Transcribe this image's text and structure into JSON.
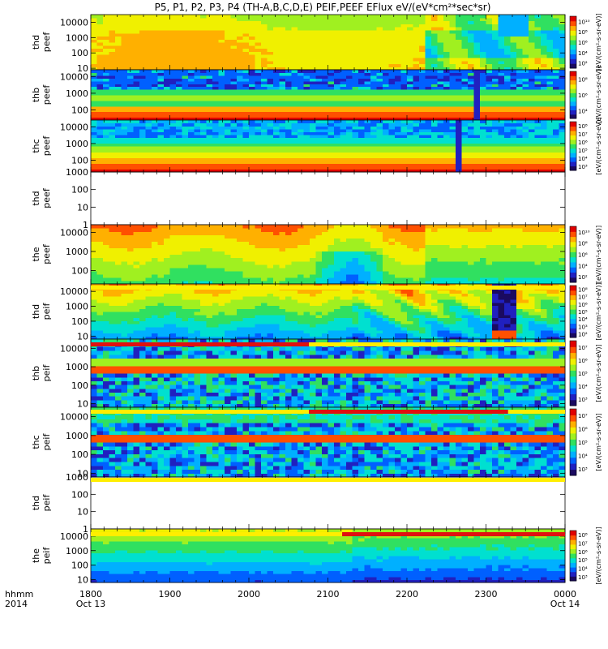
{
  "title": "P5, P1, P2, P3, P4 (TH-A,B,C,D,E) PEIF,PEEF EFlux eV/(eV*cm²*sec*sr)",
  "colors": {
    "red_bar": "#e01010",
    "yellow_bar": "#ffee00",
    "background": "#ffffff",
    "axis": "#000000"
  },
  "colormap": [
    "#1a0a60",
    "#2020c0",
    "#0060ff",
    "#00b0ff",
    "#00e0d0",
    "#30e060",
    "#a0f020",
    "#f0f000",
    "#ffb000",
    "#ff5000",
    "#e00000"
  ],
  "chart_data": {
    "type": "heatmap",
    "x_axis": {
      "row1_label": "hhmm",
      "row2_label": "2014",
      "ticks": [
        {
          "hhmm": "1800",
          "date": "Oct 13"
        },
        {
          "hhmm": "1900",
          "date": ""
        },
        {
          "hhmm": "2000",
          "date": ""
        },
        {
          "hhmm": "2100",
          "date": ""
        },
        {
          "hhmm": "2200",
          "date": ""
        },
        {
          "hhmm": "2300",
          "date": ""
        },
        {
          "hhmm": "0000",
          "date": "Oct 14"
        }
      ],
      "minor_per_major": 6
    },
    "panels": [
      {
        "ylabel1": "thd",
        "ylabel2": "peef",
        "yscale": "log",
        "yticks": [
          "10",
          "100",
          "1000",
          "10000"
        ],
        "ylim_log": [
          0.9,
          4.5
        ],
        "has_data": true,
        "pattern": "thd_peef",
        "cbar_labels": [
          "10²",
          "10⁴",
          "10⁶",
          "10⁸",
          "10¹⁰"
        ],
        "cbar_title": "[eV/(cm²-s-sr-eV)]"
      },
      {
        "ylabel1": "thb",
        "ylabel2": "peef",
        "yscale": "log",
        "yticks": [
          "100",
          "1000",
          "10000"
        ],
        "ylim_log": [
          1.4,
          4.4
        ],
        "has_data": true,
        "pattern": "thb_peef",
        "cbar_labels": [
          "10⁴",
          "10⁶",
          "10⁸"
        ],
        "cbar_title": "[eV/(cm²-s-sr-eV)]"
      },
      {
        "ylabel1": "thc",
        "ylabel2": "peef",
        "yscale": "log",
        "yticks": [
          "100",
          "1000",
          "10000"
        ],
        "ylim_log": [
          1.3,
          4.4
        ],
        "has_data": true,
        "pattern": "thc_peef",
        "cbar_labels": [
          "10³",
          "10⁴",
          "10⁵",
          "10⁶",
          "10⁷",
          "10⁸"
        ],
        "cbar_title": "[eV/(cm²-s-sr-eV)]"
      },
      {
        "ylabel1": "thd",
        "ylabel2": "peef",
        "yscale": "log",
        "yticks": [
          "1",
          "10",
          "100",
          "1000"
        ],
        "ylim_log": [
          0,
          3
        ],
        "has_data": false,
        "pattern": "",
        "cbar_labels": [],
        "cbar_title": ""
      },
      {
        "ylabel1": "the",
        "ylabel2": "peef",
        "yscale": "log",
        "yticks": [
          "100",
          "1000",
          "10000"
        ],
        "ylim_log": [
          1.3,
          4.4
        ],
        "has_data": true,
        "pattern": "the_peef",
        "cbar_labels": [
          "10²",
          "10⁴",
          "10⁶",
          "10⁸",
          "10¹⁰"
        ],
        "cbar_title": "[eV/(cm²-s-sr-eV)]"
      },
      {
        "ylabel1": "thd",
        "ylabel2": "peif",
        "yscale": "log",
        "yticks": [
          "10",
          "100",
          "1000",
          "10000"
        ],
        "ylim_log": [
          0.8,
          4.5
        ],
        "has_data": true,
        "pattern": "thd_peif",
        "cbar_labels": [
          "10²",
          "10³",
          "10⁴",
          "10⁵",
          "10⁶",
          "10⁷",
          "10⁸"
        ],
        "cbar_title": "[eV/(cm²-s-sr-eV)]"
      },
      {
        "ylabel1": "thb",
        "ylabel2": "peif",
        "yscale": "log",
        "yticks": [
          "10",
          "100",
          "1000",
          "10000"
        ],
        "ylim_log": [
          0.8,
          4.5
        ],
        "has_data": true,
        "pattern": "thb_peif",
        "cbar_labels": [
          "10³",
          "10⁴",
          "10⁵",
          "10⁶",
          "10⁷"
        ],
        "cbar_title": "[eV/(cm²-s-sr-eV)]"
      },
      {
        "ylabel1": "thc",
        "ylabel2": "peif",
        "yscale": "log",
        "yticks": [
          "10",
          "100",
          "1000",
          "10000"
        ],
        "ylim_log": [
          0.8,
          4.5
        ],
        "has_data": true,
        "pattern": "thc_peif",
        "cbar_labels": [
          "10³",
          "10⁴",
          "10⁵",
          "10⁶",
          "10⁷"
        ],
        "cbar_title": "[eV/(cm²-s-sr-eV)]"
      },
      {
        "ylabel1": "thd",
        "ylabel2": "peif",
        "yscale": "log",
        "yticks": [
          "1",
          "10",
          "100",
          "1000"
        ],
        "ylim_log": [
          0,
          3
        ],
        "has_data": false,
        "pattern": "",
        "cbar_labels": [],
        "cbar_title": ""
      },
      {
        "ylabel1": "the",
        "ylabel2": "peif",
        "yscale": "log",
        "yticks": [
          "10",
          "100",
          "1000",
          "10000"
        ],
        "ylim_log": [
          0.8,
          4.5
        ],
        "has_data": true,
        "pattern": "the_peif",
        "cbar_labels": [
          "10³",
          "10⁴",
          "10⁵",
          "10⁶",
          "10⁷",
          "10⁸"
        ],
        "cbar_title": "[eV/(cm²-s-sr-eV)]"
      }
    ]
  }
}
